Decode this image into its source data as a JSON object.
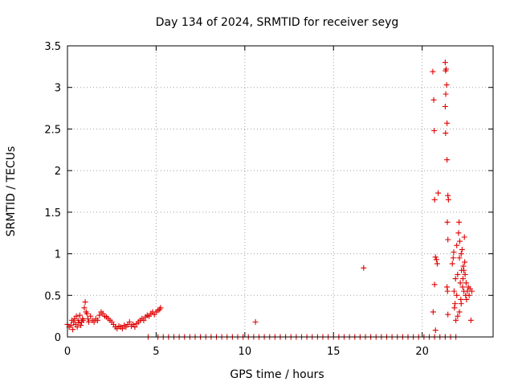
{
  "chart_data": {
    "type": "scatter",
    "title": "Day 134 of 2024, SRMTID for receiver seyg",
    "xlabel": "GPS time / hours",
    "ylabel": "SRMTID / TECUs",
    "xlim": [
      0,
      24
    ],
    "ylim": [
      0,
      3.5
    ],
    "xticks": [
      0,
      5,
      10,
      15,
      20
    ],
    "xtick_labels": [
      "0",
      "5",
      "10",
      "15",
      "20"
    ],
    "yticks": [
      0,
      0.5,
      1,
      1.5,
      2,
      2.5,
      3,
      3.5
    ],
    "ytick_labels": [
      "0",
      "0.5",
      "1",
      "1.5",
      "2",
      "2.5",
      "3",
      "3.5"
    ],
    "grid": true,
    "marker": "+",
    "color": "#e00000",
    "series": [
      {
        "name": "SRMTID",
        "points": [
          [
            0.0,
            0.15
          ],
          [
            0.1,
            0.12
          ],
          [
            0.2,
            0.14
          ],
          [
            0.25,
            0.2
          ],
          [
            0.3,
            0.09
          ],
          [
            0.35,
            0.18
          ],
          [
            0.4,
            0.22
          ],
          [
            0.45,
            0.15
          ],
          [
            0.5,
            0.25
          ],
          [
            0.55,
            0.12
          ],
          [
            0.6,
            0.2
          ],
          [
            0.65,
            0.17
          ],
          [
            0.7,
            0.26
          ],
          [
            0.75,
            0.14
          ],
          [
            0.8,
            0.18
          ],
          [
            0.85,
            0.22
          ],
          [
            0.9,
            0.2
          ],
          [
            0.95,
            0.35
          ],
          [
            1.0,
            0.42
          ],
          [
            1.05,
            0.3
          ],
          [
            1.1,
            0.28
          ],
          [
            1.15,
            0.22
          ],
          [
            1.2,
            0.18
          ],
          [
            1.3,
            0.25
          ],
          [
            1.4,
            0.2
          ],
          [
            1.5,
            0.18
          ],
          [
            1.6,
            0.22
          ],
          [
            1.7,
            0.2
          ],
          [
            1.8,
            0.26
          ],
          [
            1.9,
            0.3
          ],
          [
            2.0,
            0.28
          ],
          [
            2.1,
            0.25
          ],
          [
            2.2,
            0.24
          ],
          [
            2.3,
            0.22
          ],
          [
            2.4,
            0.2
          ],
          [
            2.5,
            0.18
          ],
          [
            2.6,
            0.15
          ],
          [
            2.7,
            0.12
          ],
          [
            2.8,
            0.1
          ],
          [
            2.9,
            0.13
          ],
          [
            3.0,
            0.12
          ],
          [
            3.1,
            0.1
          ],
          [
            3.2,
            0.14
          ],
          [
            3.3,
            0.12
          ],
          [
            3.4,
            0.15
          ],
          [
            3.5,
            0.18
          ],
          [
            3.6,
            0.13
          ],
          [
            3.7,
            0.15
          ],
          [
            3.8,
            0.12
          ],
          [
            3.9,
            0.16
          ],
          [
            4.0,
            0.18
          ],
          [
            4.1,
            0.2
          ],
          [
            4.2,
            0.22
          ],
          [
            4.3,
            0.2
          ],
          [
            4.4,
            0.24
          ],
          [
            4.5,
            0.26
          ],
          [
            4.6,
            0.25
          ],
          [
            4.7,
            0.28
          ],
          [
            4.8,
            0.3
          ],
          [
            4.9,
            0.27
          ],
          [
            5.0,
            0.3
          ],
          [
            5.1,
            0.32
          ],
          [
            5.2,
            0.33
          ],
          [
            5.25,
            0.35
          ],
          [
            4.55,
            0.0
          ],
          [
            5.1,
            0.0
          ],
          [
            5.4,
            0.0
          ],
          [
            5.7,
            0.0
          ],
          [
            6.0,
            0.0
          ],
          [
            6.3,
            0.0
          ],
          [
            6.6,
            0.0
          ],
          [
            6.9,
            0.0
          ],
          [
            7.2,
            0.0
          ],
          [
            7.5,
            0.0
          ],
          [
            7.8,
            0.0
          ],
          [
            8.1,
            0.0
          ],
          [
            8.4,
            0.0
          ],
          [
            8.7,
            0.0
          ],
          [
            9.0,
            0.0
          ],
          [
            9.3,
            0.0
          ],
          [
            9.6,
            0.0
          ],
          [
            9.9,
            0.0
          ],
          [
            10.2,
            0.0
          ],
          [
            10.5,
            0.0
          ],
          [
            10.8,
            0.0
          ],
          [
            11.1,
            0.0
          ],
          [
            11.4,
            0.0
          ],
          [
            11.7,
            0.0
          ],
          [
            12.0,
            0.0
          ],
          [
            12.3,
            0.0
          ],
          [
            12.6,
            0.0
          ],
          [
            12.9,
            0.0
          ],
          [
            13.2,
            0.0
          ],
          [
            13.5,
            0.0
          ],
          [
            13.8,
            0.0
          ],
          [
            14.1,
            0.0
          ],
          [
            14.4,
            0.0
          ],
          [
            14.7,
            0.0
          ],
          [
            15.0,
            0.0
          ],
          [
            15.3,
            0.0
          ],
          [
            15.6,
            0.0
          ],
          [
            15.9,
            0.0
          ],
          [
            16.2,
            0.0
          ],
          [
            16.5,
            0.0
          ],
          [
            16.8,
            0.0
          ],
          [
            17.1,
            0.0
          ],
          [
            17.4,
            0.0
          ],
          [
            17.7,
            0.0
          ],
          [
            18.0,
            0.0
          ],
          [
            18.3,
            0.0
          ],
          [
            18.6,
            0.0
          ],
          [
            18.9,
            0.0
          ],
          [
            19.2,
            0.0
          ],
          [
            19.5,
            0.0
          ],
          [
            19.8,
            0.0
          ],
          [
            20.1,
            0.0
          ],
          [
            20.4,
            0.0
          ],
          [
            20.7,
            0.0
          ],
          [
            21.0,
            0.0
          ],
          [
            21.3,
            0.0
          ],
          [
            21.6,
            0.0
          ],
          [
            21.9,
            0.0
          ],
          [
            10.6,
            0.18
          ],
          [
            16.7,
            0.83
          ],
          [
            20.6,
            3.19
          ],
          [
            20.65,
            2.85
          ],
          [
            20.68,
            2.48
          ],
          [
            20.7,
            1.65
          ],
          [
            20.75,
            0.96
          ],
          [
            20.8,
            0.93
          ],
          [
            20.85,
            0.88
          ],
          [
            20.9,
            1.73
          ],
          [
            20.7,
            0.63
          ],
          [
            20.62,
            0.3
          ],
          [
            20.75,
            0.08
          ],
          [
            21.3,
            3.3
          ],
          [
            21.32,
            3.2
          ],
          [
            21.35,
            3.22
          ],
          [
            21.38,
            3.03
          ],
          [
            21.33,
            2.92
          ],
          [
            21.3,
            2.77
          ],
          [
            21.4,
            2.57
          ],
          [
            21.32,
            2.45
          ],
          [
            21.4,
            2.13
          ],
          [
            21.45,
            1.7
          ],
          [
            21.48,
            1.65
          ],
          [
            21.42,
            1.38
          ],
          [
            21.45,
            1.17
          ],
          [
            21.4,
            0.6
          ],
          [
            21.43,
            0.55
          ],
          [
            21.45,
            0.27
          ],
          [
            21.7,
            0.88
          ],
          [
            21.75,
            0.95
          ],
          [
            21.78,
            1.02
          ],
          [
            21.8,
            0.55
          ],
          [
            21.82,
            0.35
          ],
          [
            21.85,
            0.4
          ],
          [
            21.88,
            0.7
          ],
          [
            21.9,
            0.2
          ],
          [
            21.95,
            1.1
          ],
          [
            22.0,
            0.75
          ],
          [
            22.05,
            1.25
          ],
          [
            22.08,
            1.38
          ],
          [
            22.1,
            0.95
          ],
          [
            22.12,
            1.15
          ],
          [
            22.15,
            0.65
          ],
          [
            22.18,
            0.45
          ],
          [
            22.2,
            1.0
          ],
          [
            22.22,
            0.8
          ],
          [
            22.25,
            1.05
          ],
          [
            22.28,
            0.6
          ],
          [
            22.3,
            0.7
          ],
          [
            22.32,
            0.85
          ],
          [
            22.35,
            0.55
          ],
          [
            22.38,
            1.2
          ],
          [
            22.4,
            0.9
          ],
          [
            22.42,
            0.75
          ],
          [
            22.45,
            0.5
          ],
          [
            22.48,
            0.65
          ],
          [
            22.5,
            0.45
          ],
          [
            22.55,
            0.55
          ],
          [
            22.6,
            0.6
          ],
          [
            22.65,
            0.5
          ],
          [
            22.7,
            0.58
          ],
          [
            22.75,
            0.2
          ],
          [
            22.8,
            0.55
          ],
          [
            22.2,
            0.4
          ],
          [
            22.0,
            0.25
          ],
          [
            22.1,
            0.3
          ],
          [
            21.95,
            0.5
          ],
          [
            22.35,
            0.8
          ]
        ]
      }
    ]
  }
}
